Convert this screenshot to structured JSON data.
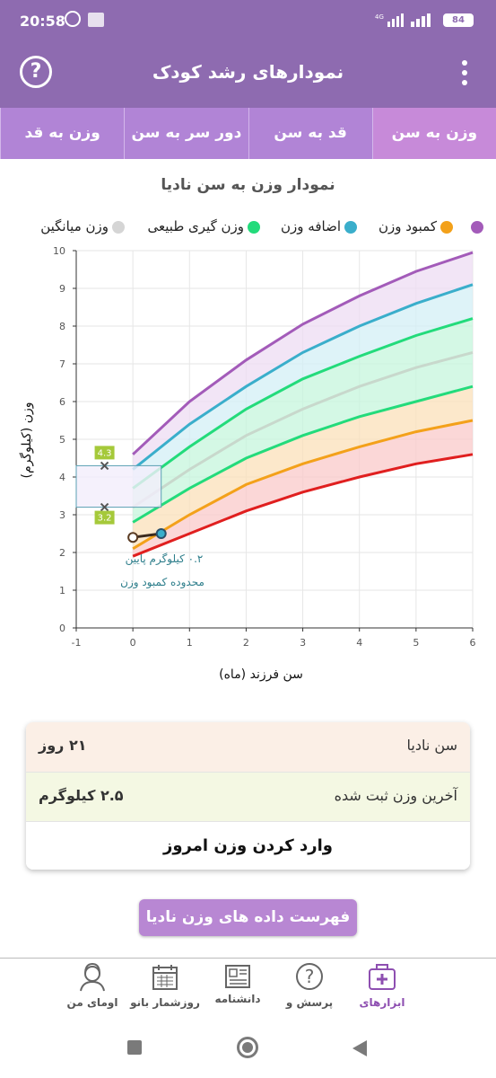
{
  "status_bar": {
    "time": "20:58",
    "network": "4G",
    "battery": "84"
  },
  "app_bar": {
    "title": "نمودارهای رشد کودک",
    "help_icon": "question-circle-icon",
    "menu_icon": "more-vert-icon"
  },
  "tabs": [
    {
      "label": "وزن به سن",
      "active": true
    },
    {
      "label": "قد به سن",
      "active": false
    },
    {
      "label": "دور سر به سن",
      "active": false
    },
    {
      "label": "وزن به قد",
      "active": false
    }
  ],
  "chart": {
    "title": "نمودار وزن به سن نادیا",
    "legend": [
      {
        "label": "",
        "color": "#a35bb9"
      },
      {
        "label": "کمبود وزن",
        "color": "#f3a11a"
      },
      {
        "label": "اضافه وزن",
        "color": "#3aaecb"
      },
      {
        "label": "وزن گیری طبیعی",
        "color": "#23db7b"
      },
      {
        "label": "وزن میانگین",
        "color": "#d5d5d5"
      }
    ],
    "annotation_line1": "۰.۲ کیلوگرم پایین",
    "annotation_line2": "محدوده کمبود وزن",
    "box_upper_label": "4.3",
    "box_lower_label": "3.2"
  },
  "chart_data": {
    "type": "area",
    "xlabel": "سن فرزند (ماه)",
    "ylabel": "وزن (کیلوگرم)",
    "xlim": [
      -1,
      6
    ],
    "ylim": [
      0,
      10
    ],
    "x_ticks": [
      -1,
      0,
      1,
      2,
      3,
      4,
      5,
      6
    ],
    "y_ticks": [
      0,
      1,
      2,
      3,
      4,
      5,
      6,
      7,
      8,
      9,
      10
    ],
    "x": [
      0,
      1,
      2,
      3,
      4,
      5,
      6
    ],
    "series": [
      {
        "color": "#e01f1f",
        "values": [
          1.9,
          2.5,
          3.1,
          3.6,
          4.0,
          4.35,
          4.6
        ]
      },
      {
        "color": "#f3a11a",
        "values": [
          2.1,
          3.0,
          3.8,
          4.35,
          4.8,
          5.2,
          5.5
        ]
      },
      {
        "color": "#23db7b",
        "values": [
          2.8,
          3.7,
          4.5,
          5.1,
          5.6,
          6.0,
          6.4
        ]
      },
      {
        "color": "#c8d8cc",
        "values": [
          3.2,
          4.2,
          5.1,
          5.8,
          6.4,
          6.9,
          7.3
        ]
      },
      {
        "color": "#23db7b",
        "values": [
          3.7,
          4.8,
          5.8,
          6.6,
          7.2,
          7.75,
          8.2
        ]
      },
      {
        "color": "#3aaecb",
        "values": [
          4.2,
          5.4,
          6.4,
          7.3,
          8.0,
          8.6,
          9.1
        ]
      },
      {
        "color": "#a35bb9",
        "values": [
          4.6,
          6.0,
          7.1,
          8.05,
          8.8,
          9.45,
          9.95
        ]
      }
    ],
    "child_points": [
      {
        "x": 0,
        "y": 2.4
      },
      {
        "x": 0.5,
        "y": 2.5
      }
    ],
    "birth_range": {
      "upper": 4.3,
      "lower": 3.2
    }
  },
  "info": {
    "age_label": "سن نادیا",
    "age_value": "۲۱ روز",
    "weight_label": "آخرین وزن ثبت شده",
    "weight_value": "۲.۵ کیلوگرم",
    "enter_weight": "وارد کردن وزن امروز"
  },
  "list_button": "فهرست داده های وزن نادیا",
  "bottom_nav": [
    {
      "label": "ابزارهای",
      "icon": "medical-kit-icon",
      "active": true
    },
    {
      "label": "پرسش و",
      "icon": "question-bubble-icon",
      "active": false
    },
    {
      "label": "دانشنامه",
      "icon": "newspaper-icon",
      "active": false
    },
    {
      "label": "روزشمار بانو",
      "icon": "calendar-icon",
      "active": false
    },
    {
      "label": "اومای من",
      "icon": "woman-avatar-icon",
      "active": false
    }
  ]
}
